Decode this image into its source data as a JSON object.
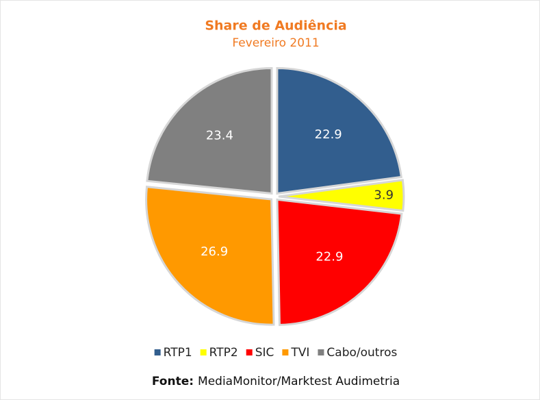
{
  "chart_data": {
    "type": "pie",
    "title": "Share de Audiência",
    "subtitle": "Fevereiro 2011",
    "categories": [
      "RTP1",
      "RTP2",
      "SIC",
      "TVI",
      "Cabo/outros"
    ],
    "values": [
      22.9,
      3.9,
      22.9,
      26.9,
      23.4
    ],
    "colors": [
      "#325e8e",
      "#ffff00",
      "#ff0000",
      "#ff9900",
      "#808080"
    ],
    "legend": "bottom",
    "source_label": "Fonte:",
    "source": "MediaMonitor/Marktest Audimetria"
  }
}
